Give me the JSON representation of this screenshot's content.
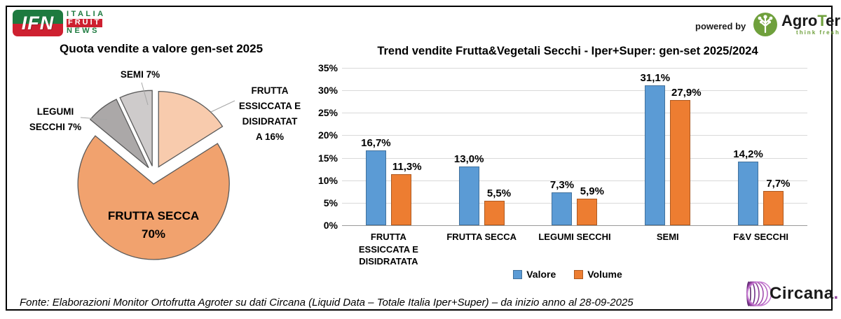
{
  "header": {
    "ifn": {
      "abbr": "IFN",
      "line1": "ITALIA",
      "line2": "FRUIT",
      "line3": "NEWS"
    },
    "powered_by": "powered by",
    "agroter": {
      "name_pre": "Agro",
      "name_t": "T",
      "name_post": "er",
      "tagline": "think fresh"
    }
  },
  "chart_data": [
    {
      "type": "pie",
      "title": "Quota vendite a valore gen-set 2025",
      "unit": "percent",
      "start_angle": "top",
      "direction": "clockwise",
      "exploded": true,
      "slices": [
        {
          "name": "FRUTTA ESSICCATA E DISIDRATATA",
          "value": 16,
          "color": "#F8CBAD",
          "label_lines": [
            "FRUTTA",
            "ESSICCATA E",
            "DISIDRATAT",
            "A 16%"
          ]
        },
        {
          "name": "FRUTTA SECCA",
          "value": 70,
          "color": "#F1A26E",
          "label_lines": [
            "FRUTTA SECCA",
            "70%"
          ]
        },
        {
          "name": "LEGUMI SECCHI",
          "value": 7,
          "color": "#ABA8A8",
          "label_lines": [
            "LEGUMI",
            "SECCHI 7%"
          ]
        },
        {
          "name": "SEMI",
          "value": 7,
          "color": "#CECBCB",
          "label_lines": [
            "SEMI 7%"
          ]
        }
      ],
      "slice_border_color": "#595959"
    },
    {
      "type": "bar",
      "title": "Trend vendite Frutta&Vegetali Secchi - Iper+Super: gen-set 2025/2024",
      "categories": [
        "FRUTTA ESSICCATA E DISIDRATATA",
        "FRUTTA SECCA",
        "LEGUMI SECCHI",
        "SEMI",
        "F&V SECCHI"
      ],
      "series": [
        {
          "name": "Valore",
          "color": "#5B9BD5",
          "border_color": "#41719C",
          "values": [
            16.7,
            13.0,
            7.3,
            31.1,
            14.2
          ],
          "labels": [
            "16,7%",
            "13,0%",
            "7,3%",
            "31,1%",
            "14,2%"
          ]
        },
        {
          "name": "Volume",
          "color": "#ED7D31",
          "border_color": "#AE5A21",
          "values": [
            11.3,
            5.5,
            5.9,
            27.9,
            7.7
          ],
          "labels": [
            "11,3%",
            "5,5%",
            "5,9%",
            "27,9%",
            "7,7%"
          ]
        }
      ],
      "ylim": [
        0,
        35
      ],
      "ytick_step": 5,
      "ytick_labels": [
        "0%",
        "5%",
        "10%",
        "15%",
        "20%",
        "25%",
        "30%",
        "35%"
      ],
      "grid": true,
      "legend_position": "bottom"
    }
  ],
  "footer": {
    "source": "Fonte: Elaborazioni Monitor Ortofrutta Agroter su dati Circana (Liquid Data – Totale Italia Iper+Super) –  da inizio anno al 28-09-2025",
    "circana_name": "Circana",
    "circana_dot": "."
  }
}
